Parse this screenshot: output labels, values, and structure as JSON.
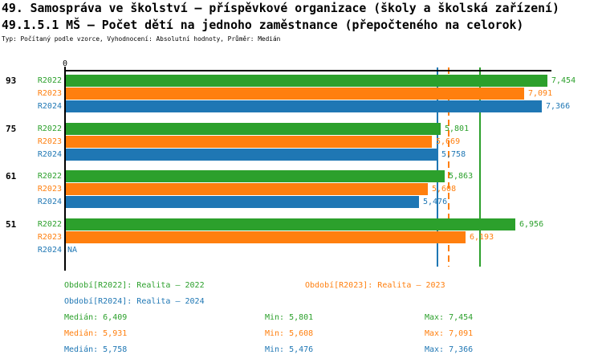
{
  "header": {
    "title1": "49. Samospráva ve školství – příspěvkové organizace (školy a školská zařízení)",
    "title2": "49.1.5.1 MŠ – Počet dětí na jednoho zaměstnance (přepočteného na celorok)",
    "subtitle": "Typ: Počítaný podle vzorce, Vyhodnocení: Absolutní hodnoty, Průměr: Medián"
  },
  "chart_data": {
    "type": "bar",
    "orientation": "horizontal",
    "title": "49.1.5.1 MŠ – Počet dětí na jednoho zaměstnance (přepočteného na celorok)",
    "x_axis": {
      "zero_label": "0",
      "min": 0,
      "max": 7.5,
      "grid": false
    },
    "categories": [
      "93",
      "75",
      "61",
      "51"
    ],
    "na_label": "NA",
    "series": [
      {
        "name": "R2022",
        "color": "#2ca02c",
        "values": [
          7.454,
          5.801,
          5.863,
          6.956
        ],
        "value_labels": [
          "7,454",
          "5,801",
          "5,863",
          "6,956"
        ],
        "median": 6.409,
        "median_label": "6,409",
        "median_line_style": "solid"
      },
      {
        "name": "R2023",
        "color": "#ff7f0e",
        "values": [
          7.091,
          5.669,
          5.608,
          6.193
        ],
        "value_labels": [
          "7,091",
          "5,669",
          "5,608",
          "6,193"
        ],
        "median": 5.931,
        "median_label": "5,931",
        "median_line_style": "dashed"
      },
      {
        "name": "R2024",
        "color": "#1f77b4",
        "values": [
          7.366,
          5.758,
          5.476,
          null
        ],
        "value_labels": [
          "7,366",
          "5,758",
          "5,476",
          "NA"
        ],
        "median": 5.758,
        "median_label": "5,758",
        "median_line_style": "solid"
      }
    ]
  },
  "legend": {
    "items": [
      {
        "series": "R2022",
        "text": "Období[R2022]: Realita – 2022",
        "color": "#2ca02c"
      },
      {
        "series": "R2023",
        "text": "Období[R2023]: Realita – 2023",
        "color": "#ff7f0e"
      },
      {
        "series": "R2024",
        "text": "Období[R2024]: Realita – 2024",
        "color": "#1f77b4"
      }
    ]
  },
  "stats": {
    "rows": [
      {
        "series": "R2022",
        "color": "#2ca02c",
        "median": "Medián: 6,409",
        "min": "Min: 5,801",
        "max": "Max: 7,454"
      },
      {
        "series": "R2023",
        "color": "#ff7f0e",
        "median": "Medián: 5,931",
        "min": "Min: 5,608",
        "max": "Max: 7,091"
      },
      {
        "series": "R2024",
        "color": "#1f77b4",
        "median": "Medián: 5,758",
        "min": "Min: 5,476",
        "max": "Max: 7,366"
      }
    ]
  }
}
